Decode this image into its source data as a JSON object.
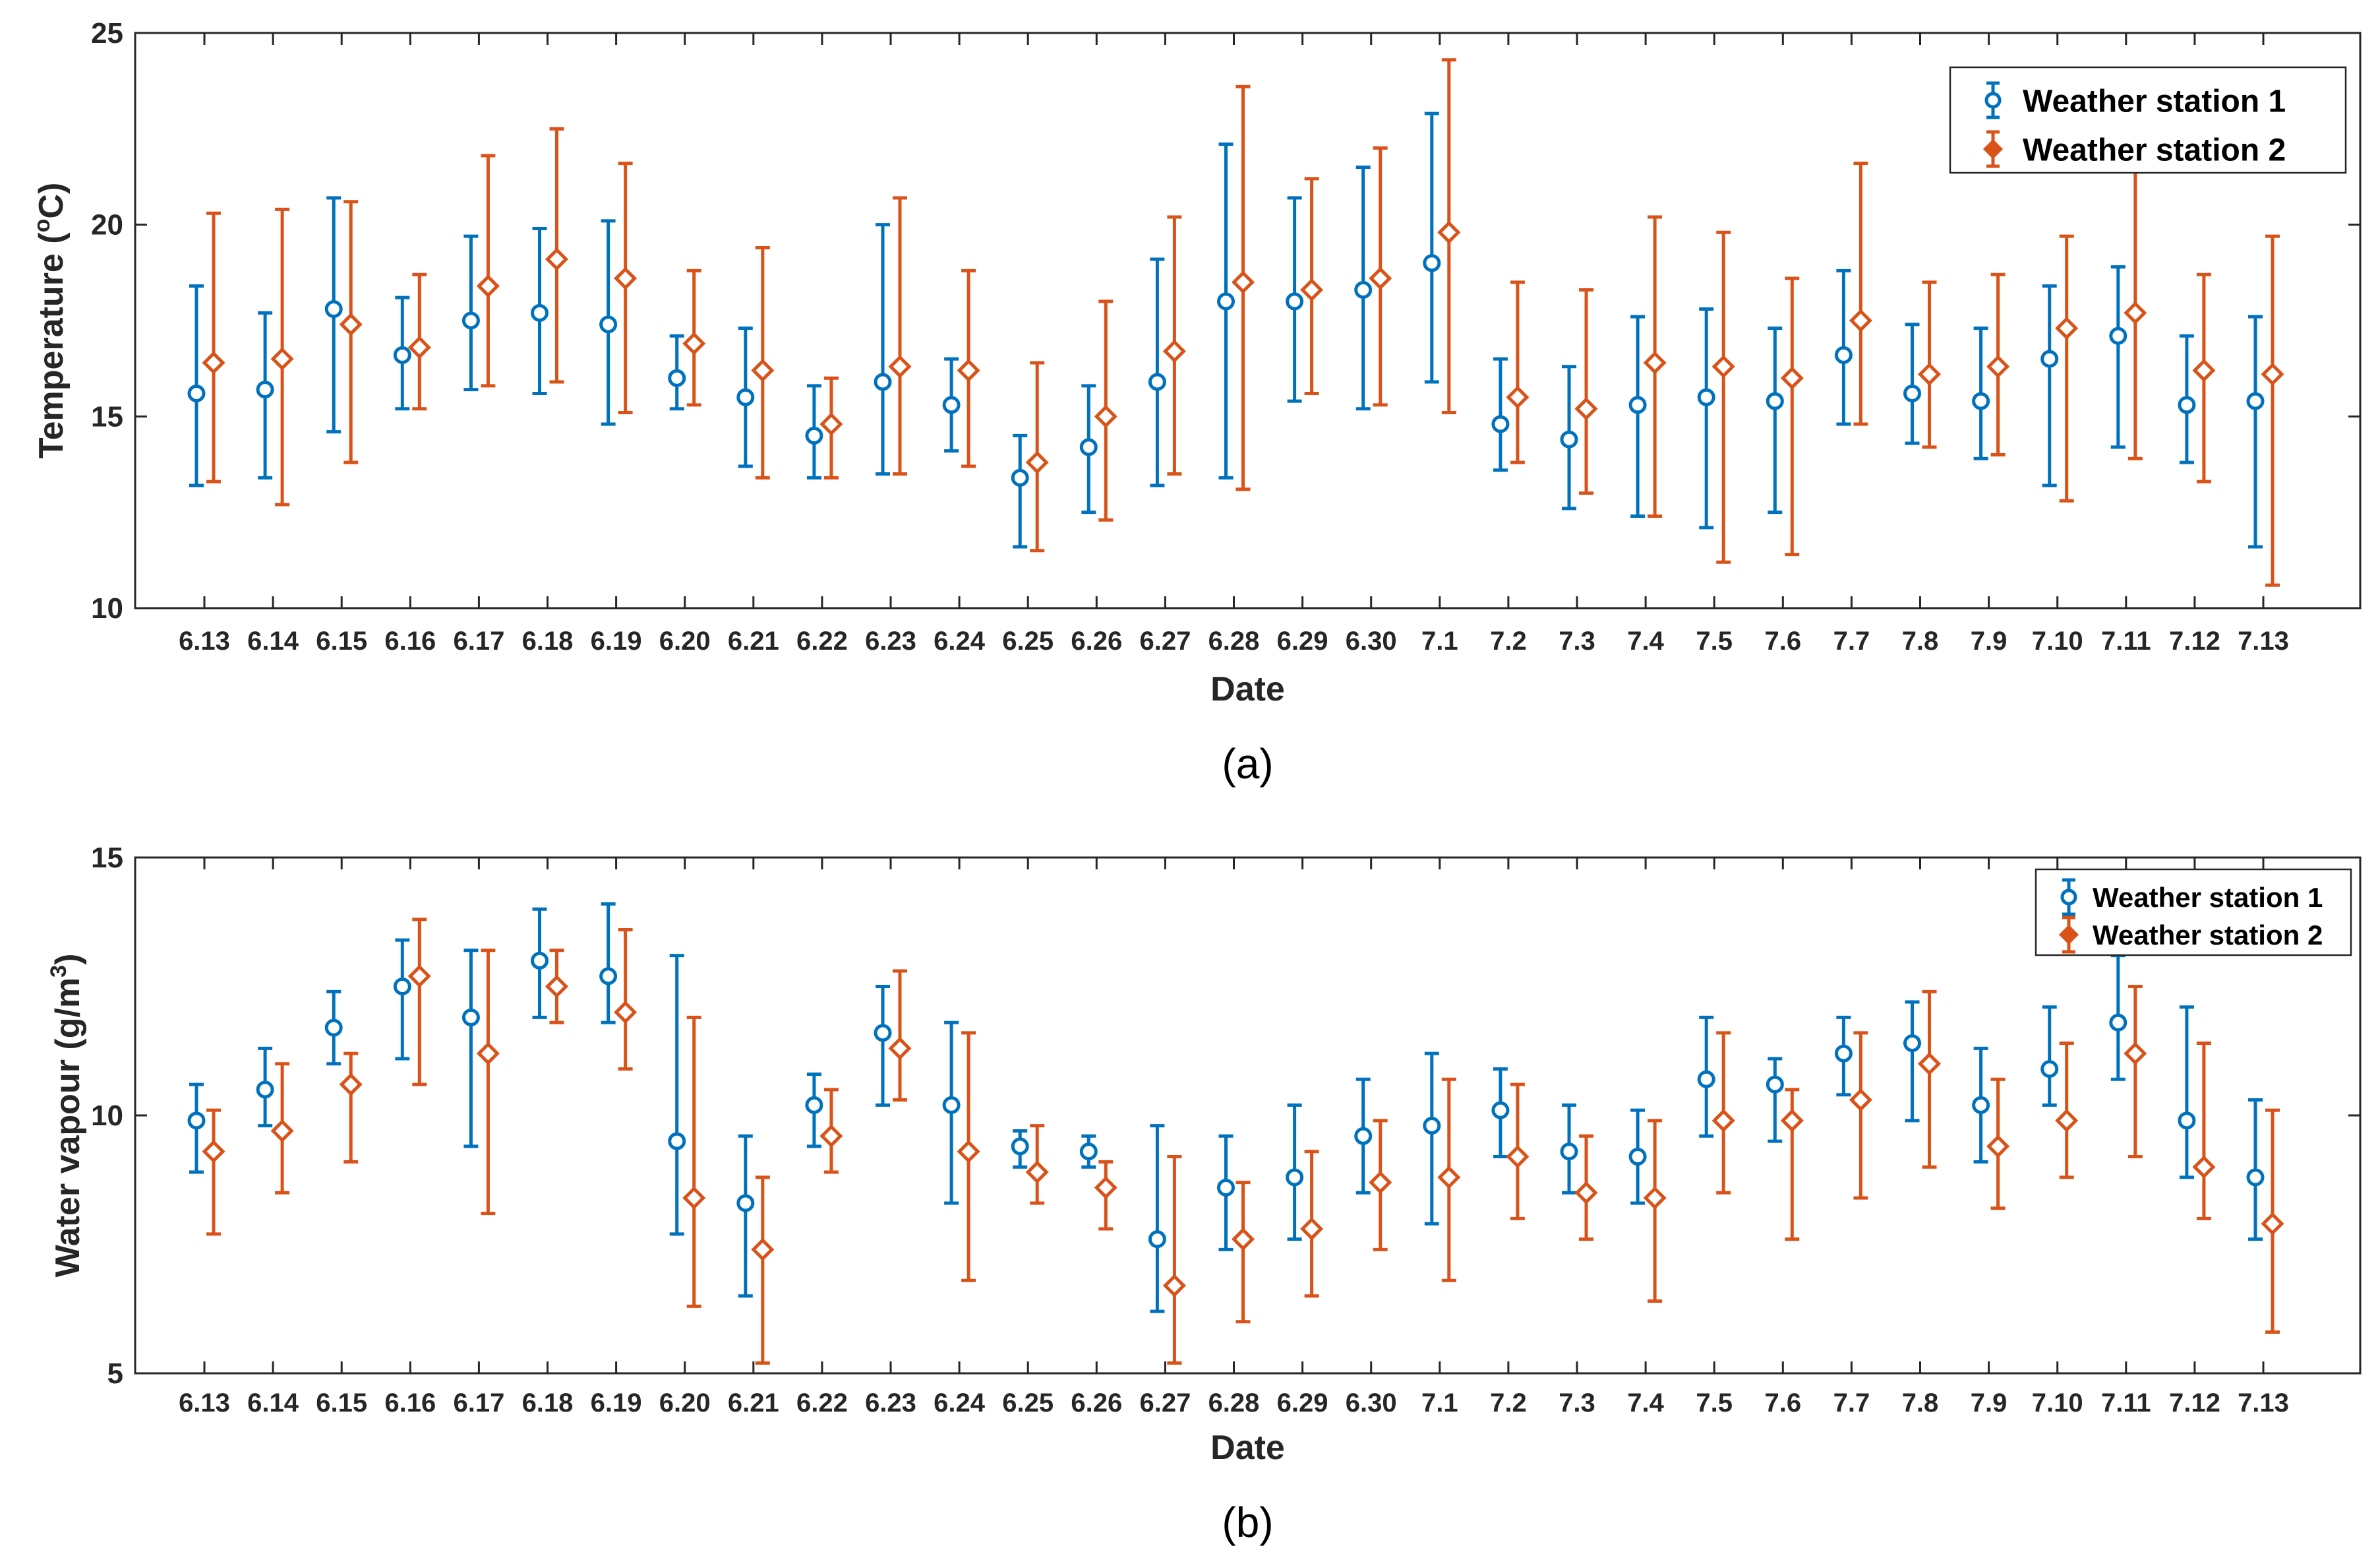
{
  "colors": {
    "station1": "#0072BD",
    "station2": "#D95319",
    "axis": "#262626"
  },
  "chart_data": [
    {
      "type": "errorbar",
      "panel_label": "(a)",
      "title": "",
      "xlabel": "Date",
      "ylabel": "Temperature (",
      "ylabel_sup": "o",
      "ylabel_tail": "C)",
      "ylim": [
        10,
        25
      ],
      "yticks": [
        10,
        15,
        20,
        25
      ],
      "legend_position": "top-right",
      "categories": [
        "6.13",
        "6.14",
        "6.15",
        "6.16",
        "6.17",
        "6.18",
        "6.19",
        "6.20",
        "6.21",
        "6.22",
        "6.23",
        "6.24",
        "6.25",
        "6.26",
        "6.27",
        "6.28",
        "6.29",
        "6.30",
        "7.1",
        "7.2",
        "7.3",
        "7.4",
        "7.5",
        "7.6",
        "7.7",
        "7.8",
        "7.9",
        "7.10",
        "7.11",
        "7.12",
        "7.13"
      ],
      "series": [
        {
          "name": "Weather station 1",
          "marker": "circle",
          "values": [
            15.6,
            15.7,
            17.8,
            16.6,
            17.5,
            17.7,
            17.4,
            16.0,
            15.5,
            14.5,
            15.9,
            15.3,
            13.4,
            14.2,
            15.9,
            18.0,
            18.0,
            18.3,
            19.0,
            14.8,
            14.4,
            15.3,
            15.5,
            15.4,
            16.6,
            15.6,
            15.4,
            16.5,
            17.1,
            15.3,
            15.4
          ],
          "lower": [
            13.2,
            13.4,
            14.6,
            15.2,
            15.7,
            15.6,
            14.8,
            15.2,
            13.7,
            13.4,
            13.5,
            14.1,
            11.6,
            12.5,
            13.2,
            13.4,
            15.4,
            15.2,
            15.9,
            13.6,
            12.6,
            12.4,
            12.1,
            12.5,
            14.8,
            14.3,
            13.9,
            13.2,
            14.2,
            13.8,
            11.6
          ],
          "upper": [
            18.4,
            17.7,
            20.7,
            18.1,
            19.7,
            19.9,
            20.1,
            17.1,
            17.3,
            15.8,
            20.0,
            16.5,
            14.5,
            15.8,
            19.1,
            22.1,
            20.7,
            21.5,
            22.9,
            16.5,
            16.3,
            17.6,
            17.8,
            17.3,
            18.8,
            17.4,
            17.3,
            18.4,
            18.9,
            17.1,
            17.6
          ]
        },
        {
          "name": "Weather station 2",
          "marker": "diamond",
          "values": [
            16.4,
            16.5,
            17.4,
            16.8,
            18.4,
            19.1,
            18.6,
            16.9,
            16.2,
            14.8,
            16.3,
            16.2,
            13.8,
            15.0,
            16.7,
            18.5,
            18.3,
            18.6,
            19.8,
            15.5,
            15.2,
            16.4,
            16.3,
            16.0,
            17.5,
            16.1,
            16.3,
            17.3,
            17.7,
            16.2,
            16.1
          ],
          "lower": [
            13.3,
            12.7,
            13.8,
            15.2,
            15.8,
            15.9,
            15.1,
            15.3,
            13.4,
            13.4,
            13.5,
            13.7,
            11.5,
            12.3,
            13.5,
            13.1,
            15.6,
            15.3,
            15.1,
            13.8,
            13.0,
            12.4,
            11.2,
            11.4,
            14.8,
            14.2,
            14.0,
            12.8,
            13.9,
            13.3,
            10.6
          ],
          "upper": [
            20.3,
            20.4,
            20.6,
            18.7,
            21.8,
            22.5,
            21.6,
            18.8,
            19.4,
            16.0,
            20.7,
            18.8,
            16.4,
            18.0,
            20.2,
            23.6,
            21.2,
            22.0,
            24.3,
            18.5,
            18.3,
            20.2,
            19.8,
            18.6,
            21.6,
            18.5,
            18.7,
            19.7,
            21.7,
            18.7,
            19.7
          ]
        }
      ]
    },
    {
      "type": "errorbar",
      "panel_label": "(b)",
      "title": "",
      "xlabel": "Date",
      "ylabel": "Water vapour (g/m",
      "ylabel_sup": "3",
      "ylabel_tail": ")",
      "ylim": [
        5,
        15
      ],
      "yticks": [
        5,
        10,
        15
      ],
      "legend_position": "top-right",
      "categories": [
        "6.13",
        "6.14",
        "6.15",
        "6.16",
        "6.17",
        "6.18",
        "6.19",
        "6.20",
        "6.21",
        "6.22",
        "6.23",
        "6.24",
        "6.25",
        "6.26",
        "6.27",
        "6.28",
        "6.29",
        "6.30",
        "7.1",
        "7.2",
        "7.3",
        "7.4",
        "7.5",
        "7.6",
        "7.7",
        "7.8",
        "7.9",
        "7.10",
        "7.11",
        "7.12",
        "7.13"
      ],
      "series": [
        {
          "name": "Weather station 1",
          "marker": "circle",
          "values": [
            9.9,
            10.5,
            11.7,
            12.5,
            11.9,
            13.0,
            12.7,
            9.5,
            8.3,
            10.2,
            11.6,
            10.2,
            9.4,
            9.3,
            7.6,
            8.6,
            8.8,
            9.6,
            9.8,
            10.1,
            9.3,
            9.2,
            10.7,
            10.6,
            11.2,
            11.4,
            10.2,
            10.9,
            11.8,
            9.9,
            8.8
          ],
          "lower": [
            8.9,
            9.8,
            11.0,
            11.1,
            9.4,
            11.9,
            11.8,
            7.7,
            6.5,
            9.4,
            10.2,
            8.3,
            9.0,
            9.0,
            6.2,
            7.4,
            7.6,
            8.5,
            7.9,
            9.2,
            8.5,
            8.3,
            9.6,
            9.5,
            10.4,
            9.9,
            9.1,
            10.2,
            10.7,
            8.8,
            7.6
          ],
          "upper": [
            10.6,
            11.3,
            12.4,
            13.4,
            13.2,
            14.0,
            14.1,
            13.1,
            9.6,
            10.8,
            12.5,
            11.8,
            9.7,
            9.6,
            9.8,
            9.6,
            10.2,
            10.7,
            11.2,
            10.9,
            10.2,
            10.1,
            11.9,
            11.1,
            11.9,
            12.2,
            11.3,
            12.1,
            13.1,
            12.1,
            10.3
          ]
        },
        {
          "name": "Weather station 2",
          "marker": "diamond",
          "values": [
            9.3,
            9.7,
            10.6,
            12.7,
            11.2,
            12.5,
            12.0,
            8.4,
            7.4,
            9.6,
            11.3,
            9.3,
            8.9,
            8.6,
            6.7,
            7.6,
            7.8,
            8.7,
            8.8,
            9.2,
            8.5,
            8.4,
            9.9,
            9.9,
            10.3,
            11.0,
            9.4,
            9.9,
            11.2,
            9.0,
            7.9
          ],
          "lower": [
            7.7,
            8.5,
            9.1,
            10.6,
            8.1,
            11.8,
            10.9,
            6.3,
            5.2,
            8.9,
            10.3,
            6.8,
            8.3,
            7.8,
            5.2,
            6.0,
            6.5,
            7.4,
            6.8,
            8.0,
            7.6,
            6.4,
            8.5,
            7.6,
            8.4,
            9.0,
            8.2,
            8.8,
            9.2,
            8.0,
            5.8
          ],
          "upper": [
            10.1,
            11.0,
            11.2,
            13.8,
            13.2,
            13.2,
            13.6,
            11.9,
            8.8,
            10.5,
            12.8,
            11.6,
            9.8,
            9.1,
            9.2,
            8.7,
            9.3,
            9.9,
            10.7,
            10.6,
            9.6,
            9.9,
            11.6,
            10.5,
            11.6,
            12.4,
            10.7,
            11.4,
            12.5,
            11.4,
            10.1
          ]
        }
      ]
    }
  ]
}
